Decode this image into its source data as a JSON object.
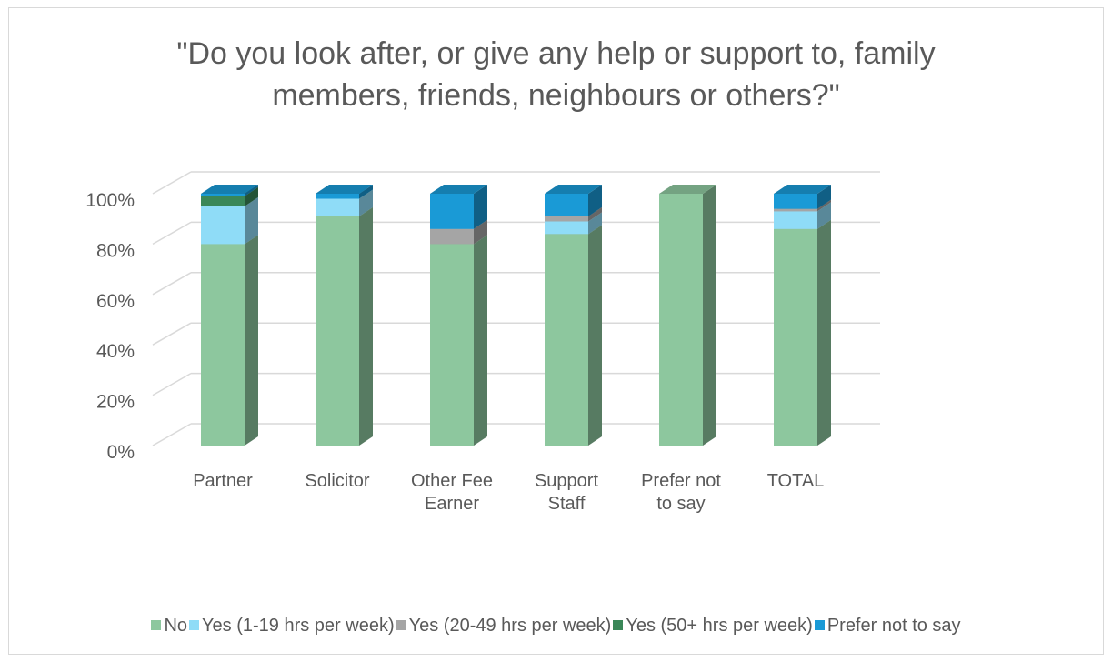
{
  "chart_data": {
    "type": "bar",
    "stacked": true,
    "percent": true,
    "title_lines": [
      "\"Do you look after, or give any help or support to, family",
      "members, friends, neighbours or others?\""
    ],
    "categories": [
      [
        "Partner"
      ],
      [
        "Solicitor"
      ],
      [
        "Other Fee",
        "Earner"
      ],
      [
        "Support",
        "Staff"
      ],
      [
        "Prefer not",
        "to say"
      ],
      [
        "TOTAL"
      ]
    ],
    "y_ticks": [
      "0%",
      "20%",
      "40%",
      "60%",
      "80%",
      "100%"
    ],
    "ylim": [
      0,
      100
    ],
    "grid": true,
    "legend_position": "bottom",
    "series": [
      {
        "name": "No",
        "color": "#8dc79e",
        "values": [
          80,
          91,
          80,
          84,
          100,
          86
        ]
      },
      {
        "name": "Yes (1-19 hrs per week)",
        "color": "#8fdcf7",
        "values": [
          15,
          7,
          0,
          5,
          0,
          7
        ]
      },
      {
        "name": "Yes (20-49 hrs per week)",
        "color": "#a5a5a5",
        "values": [
          0,
          0,
          6,
          2,
          0,
          1
        ]
      },
      {
        "name": "Yes (50+ hrs per week)",
        "color": "#3a8758",
        "values": [
          4,
          0,
          0,
          0,
          0,
          0
        ]
      },
      {
        "name": "Prefer not to say",
        "color": "#1a9ad6",
        "values": [
          1,
          2,
          14,
          9,
          0,
          6
        ]
      }
    ]
  }
}
